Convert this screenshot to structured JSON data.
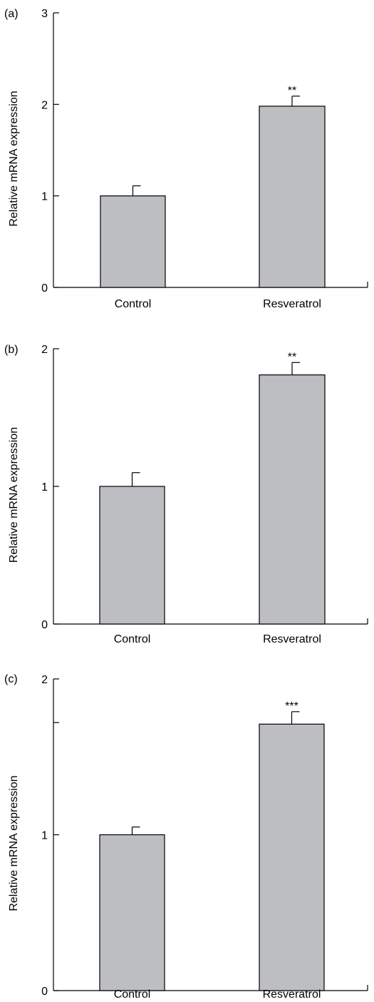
{
  "colors": {
    "bar_fill": "#bdbec1",
    "axis": "#000000"
  },
  "chart_data": [
    {
      "panel_label": "(a)",
      "type": "bar",
      "categories": [
        "Control",
        "Resveratrol"
      ],
      "values": [
        1.0,
        1.98
      ],
      "errors": [
        0.11,
        0.11
      ],
      "significance": [
        "",
        "**"
      ],
      "ylabel": "Relative mRNA expression",
      "ylim": [
        0,
        3
      ],
      "yticks": [
        0,
        1,
        2,
        3
      ],
      "ytick_labels": [
        "0",
        "1",
        "2",
        "3"
      ],
      "minor_yticks": [],
      "grid": false
    },
    {
      "panel_label": "(b)",
      "type": "bar",
      "categories": [
        "Control",
        "Resveratrol"
      ],
      "values": [
        1.0,
        1.81
      ],
      "errors": [
        0.1,
        0.09
      ],
      "significance": [
        "",
        "**"
      ],
      "ylabel": "Relative mRNA expression",
      "ylim": [
        0,
        2
      ],
      "yticks": [
        0,
        1,
        2
      ],
      "ytick_labels": [
        "0",
        "1",
        "2"
      ],
      "minor_yticks": [],
      "grid": false
    },
    {
      "panel_label": "(c)",
      "type": "bar",
      "categories": [
        "Control",
        "Resveratrol"
      ],
      "values": [
        1.0,
        1.71
      ],
      "errors": [
        0.05,
        0.08
      ],
      "significance": [
        "",
        "***"
      ],
      "ylabel": "Relative mRNA expression",
      "ylim": [
        0,
        2
      ],
      "yticks": [
        0,
        1,
        2
      ],
      "ytick_labels": [
        "0",
        "1",
        "2"
      ],
      "minor_yticks": [
        1.72
      ],
      "grid": false
    }
  ]
}
